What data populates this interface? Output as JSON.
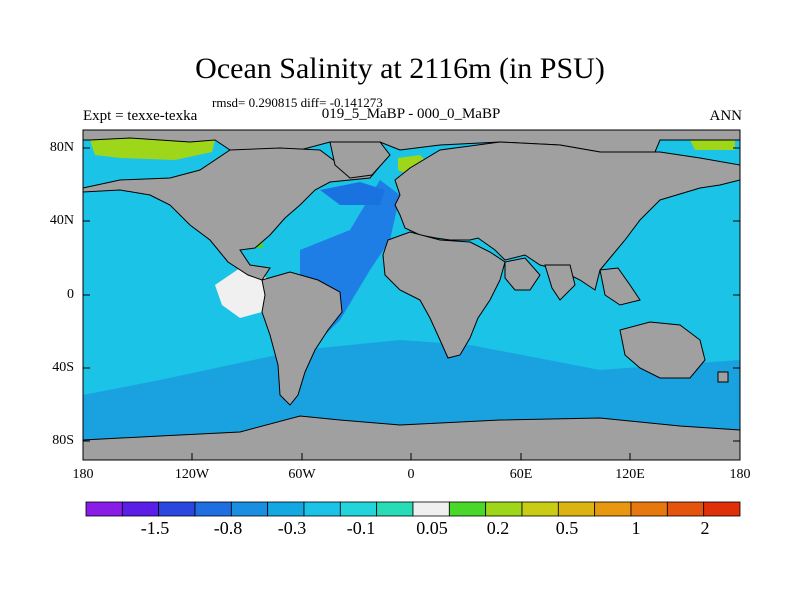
{
  "title": "Ocean Salinity at 2116m (in PSU)",
  "stats": "rmsd= 0.290815 diff= -0.141273",
  "experiment": "Expt = texxe-texka",
  "case_label": "019_5_MaBP - 000_0_MaBP",
  "season": "ANN",
  "lat_labels": [
    "80N",
    "40N",
    "0",
    "40S",
    "80S"
  ],
  "lon_labels": [
    "180",
    "120W",
    "60W",
    "0",
    "60E",
    "120E",
    "180"
  ],
  "colorbar": {
    "colors": [
      "#8a1ce8",
      "#5b1ee6",
      "#2a48e0",
      "#1f6fe2",
      "#1a8ee0",
      "#14a8e2",
      "#1bc3e6",
      "#23d4da",
      "#29dcb8",
      "#f0f0f0",
      "#49d82a",
      "#9ed61a",
      "#c8cc14",
      "#dcb411",
      "#e89810",
      "#e6780e",
      "#e4540c",
      "#e0300a"
    ],
    "labels": [
      "-1.5",
      "-0.8",
      "-0.3",
      "-0.1",
      "0.05",
      "0.2",
      "0.5",
      "1",
      "2"
    ]
  },
  "colors": {
    "land": "#a0a0a0",
    "ocean_background": "#1bc3e6",
    "deep_atlantic": "#1f7ee6",
    "southern_ocean": "#1aa2e0",
    "anomaly_positive": "#e0300a",
    "anomaly_zero": "#f0f0f0"
  }
}
